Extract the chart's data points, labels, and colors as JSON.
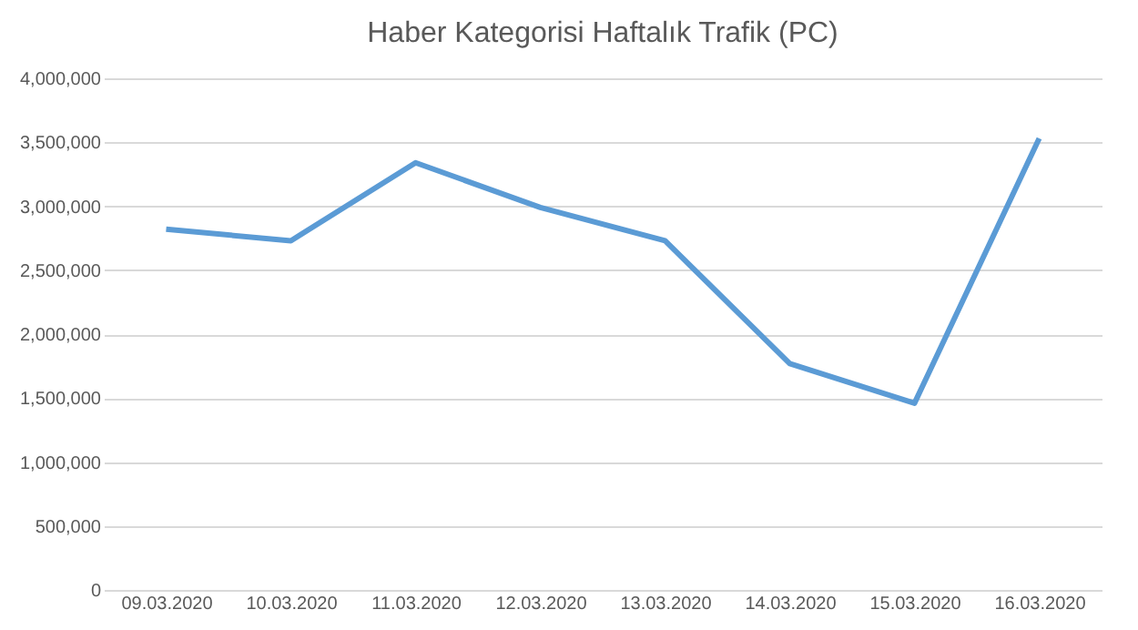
{
  "chart_data": {
    "type": "line",
    "title": "Haber Kategorisi Haftalık Trafik (PC)",
    "categories": [
      "09.03.2020",
      "10.03.2020",
      "11.03.2020",
      "12.03.2020",
      "13.03.2020",
      "14.03.2020",
      "15.03.2020",
      "16.03.2020"
    ],
    "series": [
      {
        "color": "#5b9bd5",
        "values": [
          2820000,
          2730000,
          3340000,
          2990000,
          2730000,
          1770000,
          1460000,
          3530000
        ]
      }
    ],
    "ylim": [
      0,
      4000000
    ],
    "yticks": [
      0,
      {
        "value": 500000,
        "label": "500,000"
      },
      {
        "value": 1000000,
        "label": "1,000,000"
      },
      {
        "value": 1500000,
        "label": "1,500,000"
      },
      {
        "value": 2000000,
        "label": "2,000,000"
      },
      {
        "value": 2500000,
        "label": "2,500,000"
      },
      {
        "value": 3000000,
        "label": "3,000,000"
      },
      {
        "value": 3500000,
        "label": "3,500,000"
      },
      {
        "value": 4000000,
        "label": "4,000,000"
      }
    ],
    "grid": "y",
    "marker": "none",
    "line_style": "solid"
  }
}
